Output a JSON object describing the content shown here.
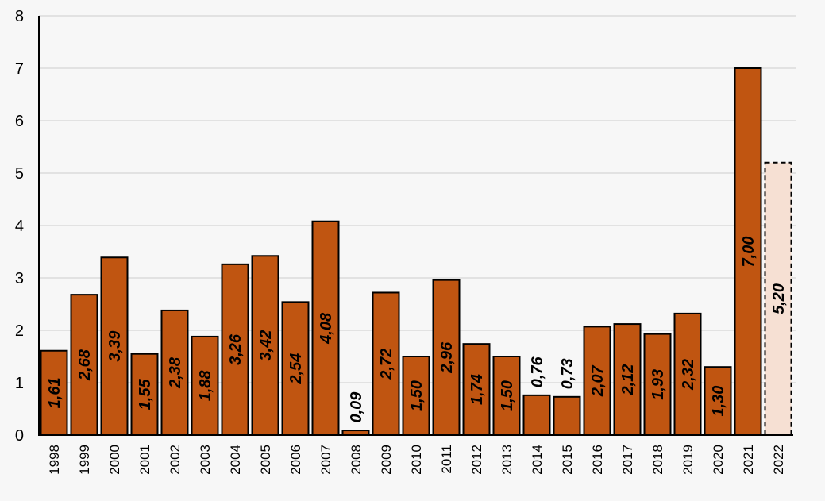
{
  "chart_data": {
    "type": "bar",
    "title": "",
    "xlabel": "",
    "ylabel": "",
    "ylim": [
      0,
      8
    ],
    "yticks": [
      "0",
      "1",
      "2",
      "3",
      "4",
      "5",
      "6",
      "7",
      "8"
    ],
    "grid": true,
    "categories": [
      "1998",
      "1999",
      "2000",
      "2001",
      "2002",
      "2003",
      "2004",
      "2005",
      "2006",
      "2007",
      "2008",
      "2009",
      "2010",
      "2011",
      "2012",
      "2013",
      "2014",
      "2015",
      "2016",
      "2017",
      "2018",
      "2019",
      "2020",
      "2021",
      "2022"
    ],
    "values": [
      1.61,
      2.68,
      3.39,
      1.55,
      2.38,
      1.88,
      3.26,
      3.42,
      2.54,
      4.08,
      0.09,
      2.72,
      1.5,
      2.96,
      1.74,
      1.5,
      0.76,
      0.73,
      2.07,
      2.12,
      1.93,
      2.32,
      1.3,
      7.0,
      5.2
    ],
    "labels": [
      "1,61",
      "2,68",
      "3,39",
      "1,55",
      "2,38",
      "1,88",
      "3,26",
      "3,42",
      "2,54",
      "4,08",
      "0,09",
      "2,72",
      "1,50",
      "2,96",
      "1,74",
      "1,50",
      "0,76",
      "0,73",
      "2,07",
      "2,12",
      "1,93",
      "2,32",
      "1,30",
      "7,00",
      "5,20"
    ],
    "estimated": [
      false,
      false,
      false,
      false,
      false,
      false,
      false,
      false,
      false,
      false,
      false,
      false,
      false,
      false,
      false,
      false,
      false,
      false,
      false,
      false,
      false,
      false,
      false,
      false,
      true
    ],
    "colors": {
      "bar": "#c05511",
      "estimate_fill": "#f6e0d3",
      "grid": "#dcdcdc"
    }
  }
}
